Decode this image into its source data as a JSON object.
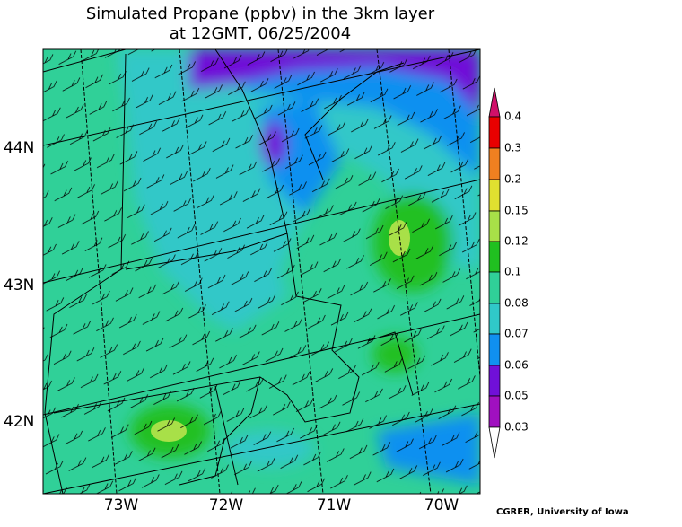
{
  "title": [
    "Simulated Propane (ppbv) in the 3km layer",
    "at 12GMT, 06/25/2004"
  ],
  "map": {
    "lat_labels": [
      "44N",
      "43N",
      "42N"
    ],
    "lon_labels": [
      "73W",
      "72W",
      "71W",
      "70W"
    ]
  },
  "colorbar": {
    "labels": [
      "0.4",
      "0.3",
      "0.2",
      "0.15",
      "0.12",
      "0.1",
      "0.08",
      "0.07",
      "0.06",
      "0.05",
      "0.03"
    ]
  },
  "credit": "CGRER, University of Iowa"
}
